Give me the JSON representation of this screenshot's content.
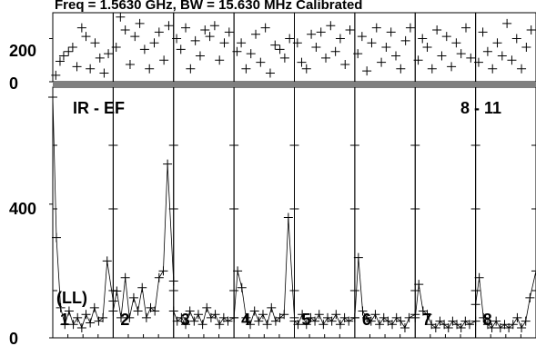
{
  "header": {
    "text": "Freq = 1.5630 GHz, BW = 15.630 MHz  Calibrated"
  },
  "chart_data": {
    "type": "scatter",
    "panel_count": 8,
    "top": {
      "yticks": [
        0,
        200
      ],
      "ylim": [
        0,
        320
      ],
      "marker": "+",
      "points_per_panel": [
        [
          [
            0.05,
            30
          ],
          [
            0.12,
            95
          ],
          [
            0.18,
            120
          ],
          [
            0.26,
            140
          ],
          [
            0.33,
            160
          ],
          [
            0.4,
            70
          ],
          [
            0.48,
            250
          ],
          [
            0.55,
            210
          ],
          [
            0.62,
            60
          ],
          [
            0.7,
            180
          ],
          [
            0.78,
            110
          ],
          [
            0.85,
            40
          ],
          [
            0.92,
            130
          ]
        ],
        [
          [
            0.05,
            160
          ],
          [
            0.12,
            300
          ],
          [
            0.2,
            240
          ],
          [
            0.28,
            80
          ],
          [
            0.36,
            210
          ],
          [
            0.44,
            270
          ],
          [
            0.52,
            150
          ],
          [
            0.6,
            60
          ],
          [
            0.68,
            180
          ],
          [
            0.76,
            230
          ],
          [
            0.84,
            100
          ],
          [
            0.92,
            260
          ]
        ],
        [
          [
            0.05,
            200
          ],
          [
            0.12,
            150
          ],
          [
            0.2,
            250
          ],
          [
            0.28,
            60
          ],
          [
            0.36,
            190
          ],
          [
            0.44,
            120
          ],
          [
            0.52,
            240
          ],
          [
            0.6,
            210
          ],
          [
            0.68,
            260
          ],
          [
            0.76,
            100
          ],
          [
            0.84,
            180
          ],
          [
            0.92,
            230
          ]
        ],
        [
          [
            0.05,
            140
          ],
          [
            0.12,
            180
          ],
          [
            0.2,
            60
          ],
          [
            0.28,
            130
          ],
          [
            0.36,
            220
          ],
          [
            0.44,
            90
          ],
          [
            0.52,
            250
          ],
          [
            0.6,
            40
          ],
          [
            0.68,
            170
          ],
          [
            0.76,
            150
          ],
          [
            0.84,
            110
          ],
          [
            0.92,
            200
          ]
        ],
        [
          [
            0.05,
            180
          ],
          [
            0.12,
            90
          ],
          [
            0.2,
            60
          ],
          [
            0.28,
            220
          ],
          [
            0.36,
            160
          ],
          [
            0.44,
            230
          ],
          [
            0.52,
            110
          ],
          [
            0.6,
            260
          ],
          [
            0.68,
            140
          ],
          [
            0.76,
            200
          ],
          [
            0.84,
            80
          ],
          [
            0.92,
            240
          ]
        ],
        [
          [
            0.05,
            130
          ],
          [
            0.12,
            210
          ],
          [
            0.2,
            50
          ],
          [
            0.28,
            180
          ],
          [
            0.36,
            250
          ],
          [
            0.44,
            90
          ],
          [
            0.52,
            160
          ],
          [
            0.6,
            230
          ],
          [
            0.68,
            120
          ],
          [
            0.76,
            60
          ],
          [
            0.84,
            190
          ],
          [
            0.92,
            250
          ]
        ],
        [
          [
            0.05,
            100
          ],
          [
            0.12,
            200
          ],
          [
            0.2,
            160
          ],
          [
            0.28,
            60
          ],
          [
            0.36,
            240
          ],
          [
            0.44,
            120
          ],
          [
            0.52,
            210
          ],
          [
            0.6,
            70
          ],
          [
            0.68,
            180
          ],
          [
            0.76,
            130
          ],
          [
            0.84,
            250
          ],
          [
            0.92,
            110
          ]
        ],
        [
          [
            0.05,
            90
          ],
          [
            0.12,
            230
          ],
          [
            0.2,
            140
          ],
          [
            0.28,
            60
          ],
          [
            0.36,
            180
          ],
          [
            0.44,
            120
          ],
          [
            0.52,
            270
          ],
          [
            0.6,
            100
          ],
          [
            0.68,
            200
          ],
          [
            0.76,
            60
          ],
          [
            0.84,
            160
          ],
          [
            0.92,
            240
          ]
        ]
      ]
    },
    "bottom": {
      "yticks": [
        0,
        400
      ],
      "ylim": [
        0,
        750
      ],
      "marker": "+",
      "line": true,
      "panel_labels": [
        "1",
        "2",
        "3",
        "4",
        "5",
        "6",
        "7",
        "8"
      ],
      "corner_labels": {
        "left": "IR - EF",
        "right": "8 - 11",
        "mode": "(LL)"
      },
      "series": [
        [
          [
            0.0,
            720
          ],
          [
            0.06,
            300
          ],
          [
            0.13,
            90
          ],
          [
            0.2,
            40
          ],
          [
            0.27,
            80
          ],
          [
            0.34,
            40
          ],
          [
            0.41,
            60
          ],
          [
            0.48,
            30
          ],
          [
            0.55,
            70
          ],
          [
            0.62,
            45
          ],
          [
            0.69,
            90
          ],
          [
            0.76,
            50
          ],
          [
            0.83,
            60
          ],
          [
            0.9,
            230
          ],
          [
            1.0,
            110
          ]
        ],
        [
          [
            0.0,
            80
          ],
          [
            0.06,
            140
          ],
          [
            0.13,
            60
          ],
          [
            0.2,
            180
          ],
          [
            0.27,
            60
          ],
          [
            0.34,
            120
          ],
          [
            0.41,
            80
          ],
          [
            0.48,
            150
          ],
          [
            0.55,
            60
          ],
          [
            0.62,
            90
          ],
          [
            0.69,
            80
          ],
          [
            0.76,
            180
          ],
          [
            0.83,
            200
          ],
          [
            0.9,
            520
          ],
          [
            1.0,
            170
          ]
        ],
        [
          [
            0.0,
            80
          ],
          [
            0.06,
            50
          ],
          [
            0.13,
            60
          ],
          [
            0.2,
            40
          ],
          [
            0.27,
            80
          ],
          [
            0.34,
            50
          ],
          [
            0.41,
            70
          ],
          [
            0.48,
            40
          ],
          [
            0.55,
            90
          ],
          [
            0.62,
            60
          ],
          [
            0.69,
            70
          ],
          [
            0.76,
            40
          ],
          [
            0.83,
            60
          ],
          [
            0.9,
            50
          ],
          [
            1.0,
            60
          ]
        ],
        [
          [
            0.0,
            60
          ],
          [
            0.06,
            200
          ],
          [
            0.13,
            150
          ],
          [
            0.2,
            60
          ],
          [
            0.27,
            40
          ],
          [
            0.34,
            80
          ],
          [
            0.41,
            50
          ],
          [
            0.48,
            70
          ],
          [
            0.55,
            40
          ],
          [
            0.62,
            90
          ],
          [
            0.69,
            50
          ],
          [
            0.76,
            60
          ],
          [
            0.83,
            70
          ],
          [
            0.9,
            360
          ],
          [
            1.0,
            60
          ]
        ],
        [
          [
            0.0,
            50
          ],
          [
            0.06,
            40
          ],
          [
            0.13,
            70
          ],
          [
            0.2,
            40
          ],
          [
            0.27,
            60
          ],
          [
            0.34,
            50
          ],
          [
            0.41,
            70
          ],
          [
            0.48,
            40
          ],
          [
            0.55,
            60
          ],
          [
            0.62,
            50
          ],
          [
            0.69,
            70
          ],
          [
            0.76,
            40
          ],
          [
            0.83,
            60
          ],
          [
            0.9,
            50
          ],
          [
            1.0,
            60
          ]
        ],
        [
          [
            0.0,
            60
          ],
          [
            0.06,
            240
          ],
          [
            0.13,
            80
          ],
          [
            0.2,
            60
          ],
          [
            0.27,
            50
          ],
          [
            0.34,
            70
          ],
          [
            0.41,
            40
          ],
          [
            0.48,
            60
          ],
          [
            0.55,
            50
          ],
          [
            0.62,
            40
          ],
          [
            0.69,
            60
          ],
          [
            0.76,
            50
          ],
          [
            0.83,
            30
          ],
          [
            0.9,
            60
          ],
          [
            1.0,
            70
          ]
        ],
        [
          [
            0.0,
            60
          ],
          [
            0.06,
            160
          ],
          [
            0.13,
            80
          ],
          [
            0.2,
            70
          ],
          [
            0.27,
            40
          ],
          [
            0.34,
            30
          ],
          [
            0.41,
            50
          ],
          [
            0.48,
            40
          ],
          [
            0.55,
            30
          ],
          [
            0.62,
            50
          ],
          [
            0.69,
            40
          ],
          [
            0.76,
            30
          ],
          [
            0.83,
            50
          ],
          [
            0.9,
            40
          ],
          [
            1.0,
            50
          ]
        ],
        [
          [
            0.0,
            100
          ],
          [
            0.06,
            180
          ],
          [
            0.13,
            60
          ],
          [
            0.2,
            40
          ],
          [
            0.27,
            30
          ],
          [
            0.34,
            50
          ],
          [
            0.41,
            30
          ],
          [
            0.48,
            40
          ],
          [
            0.55,
            30
          ],
          [
            0.62,
            40
          ],
          [
            0.69,
            60
          ],
          [
            0.76,
            30
          ],
          [
            0.83,
            50
          ],
          [
            0.9,
            120
          ],
          [
            1.0,
            200
          ]
        ]
      ]
    }
  }
}
